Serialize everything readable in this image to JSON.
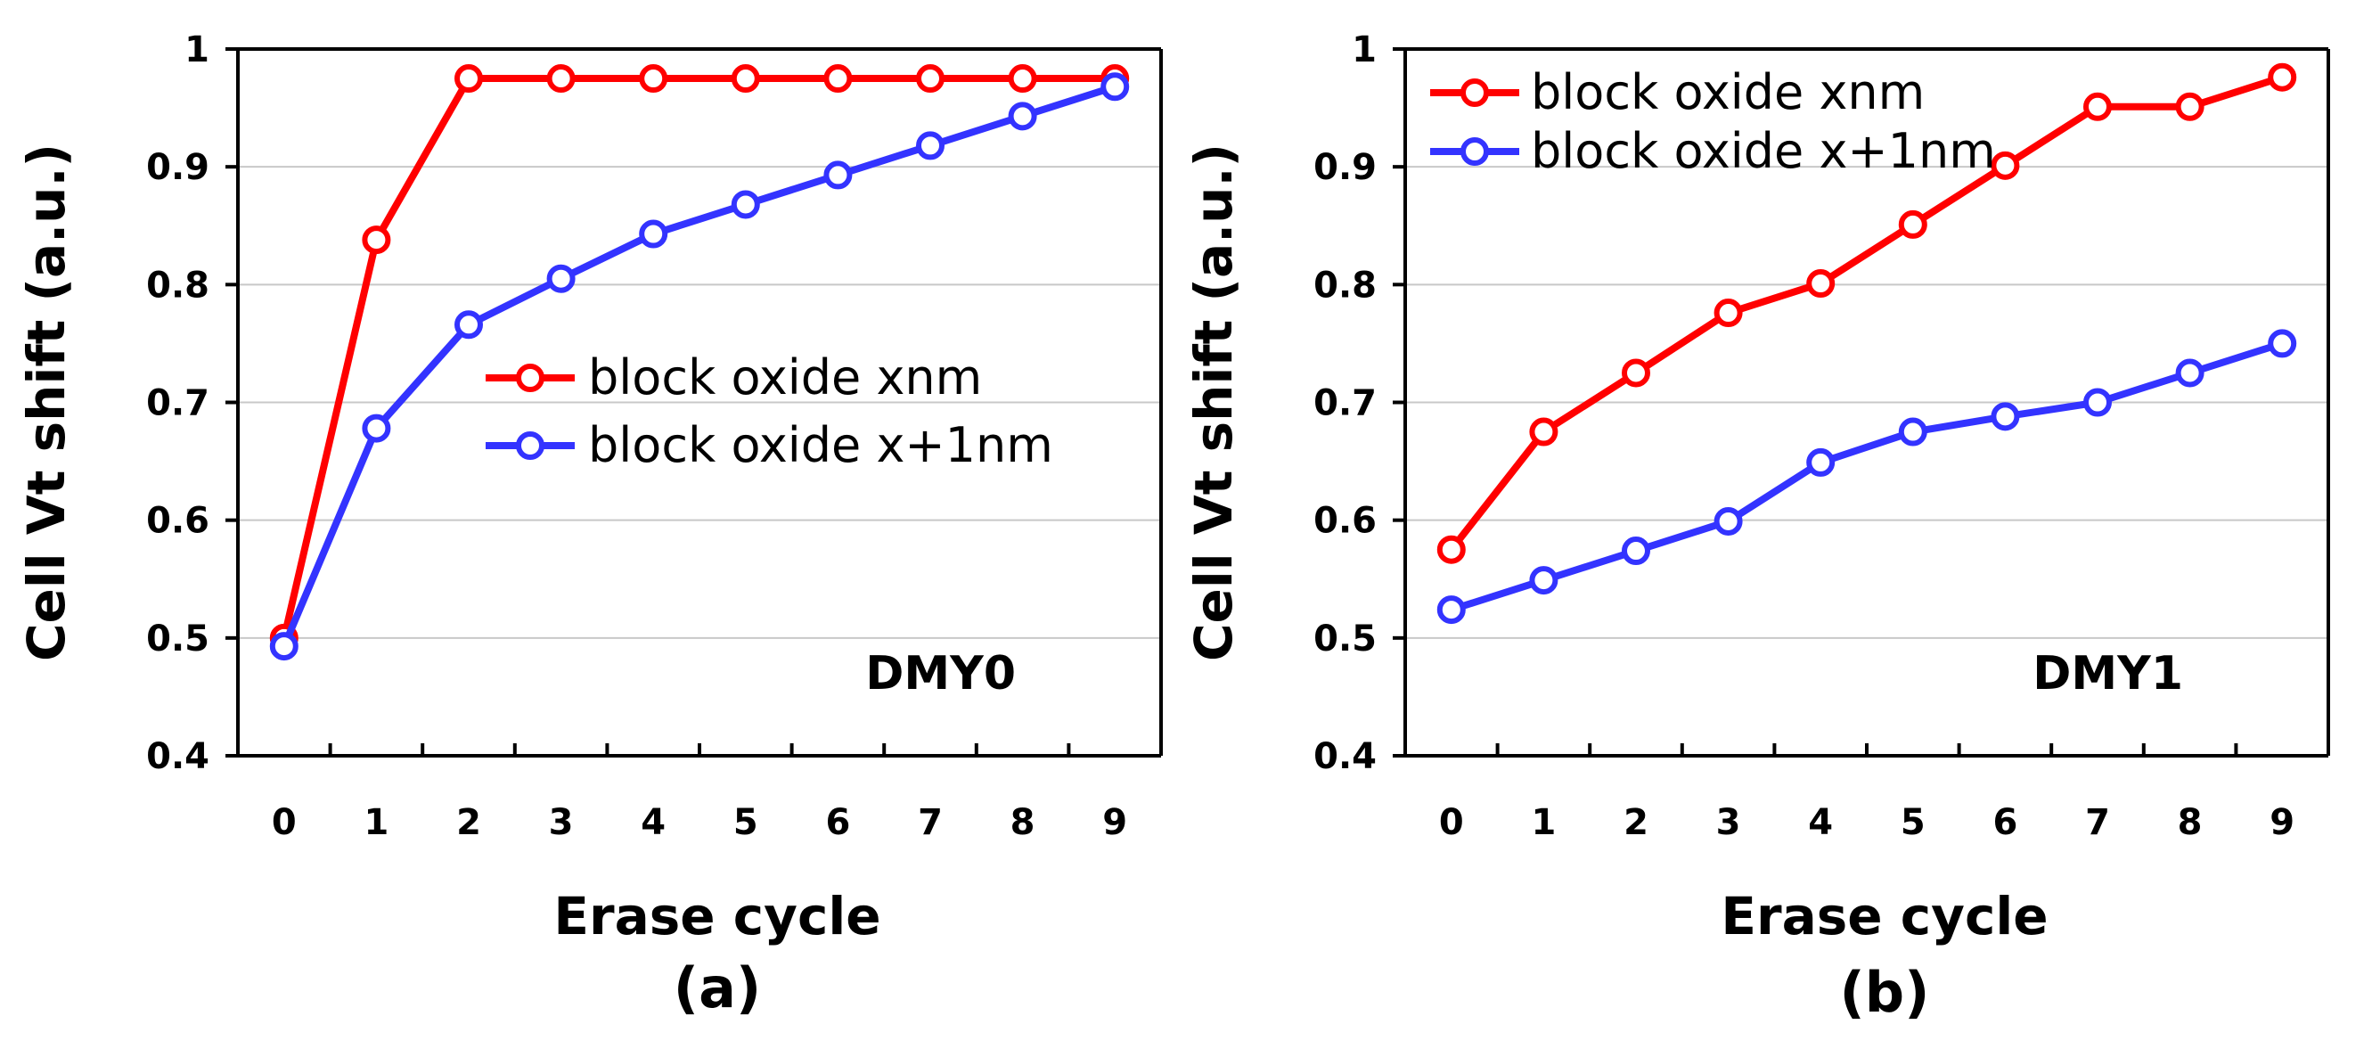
{
  "colors": {
    "series_red": "#ff0000",
    "series_blue": "#3333ff",
    "grid": "#c8c8c8"
  },
  "chart_data": [
    {
      "type": "line",
      "panel_label": "(a)",
      "annotation": "DMY0",
      "xlabel": "Erase cycle",
      "ylabel": "Cell Vt shift (a.u.)",
      "ylim": [
        0.4,
        1.0
      ],
      "yticks": [
        "0.4",
        "0.5",
        "0.6",
        "0.7",
        "0.8",
        "0.9",
        "1"
      ],
      "x": [
        0,
        1,
        2,
        3,
        4,
        5,
        6,
        7,
        8,
        9
      ],
      "xticks": [
        "0",
        "1",
        "2",
        "3",
        "4",
        "5",
        "6",
        "7",
        "8",
        "9"
      ],
      "legend_position": "center-right",
      "series": [
        {
          "name": "block oxide xnm",
          "color": "#ff0000",
          "values": [
            0.5,
            0.838,
            0.975,
            0.975,
            0.975,
            0.975,
            0.975,
            0.975,
            0.975,
            0.975
          ]
        },
        {
          "name": "block oxide x+1nm",
          "color": "#3333ff",
          "values": [
            0.493,
            0.678,
            0.766,
            0.805,
            0.843,
            0.868,
            0.893,
            0.918,
            0.943,
            0.968
          ]
        }
      ]
    },
    {
      "type": "line",
      "panel_label": "(b)",
      "annotation": "DMY1",
      "xlabel": "Erase cycle",
      "ylabel": "Cell Vt shift (a.u.)",
      "ylim": [
        0.4,
        1.0
      ],
      "yticks": [
        "0.4",
        "0.5",
        "0.6",
        "0.7",
        "0.8",
        "0.9",
        "1"
      ],
      "x": [
        0,
        1,
        2,
        3,
        4,
        5,
        6,
        7,
        8,
        9
      ],
      "xticks": [
        "0",
        "1",
        "2",
        "3",
        "4",
        "5",
        "6",
        "7",
        "8",
        "9"
      ],
      "legend_position": "top-left",
      "series": [
        {
          "name": "block oxide xnm",
          "color": "#ff0000",
          "values": [
            0.575,
            0.675,
            0.725,
            0.776,
            0.801,
            0.851,
            0.901,
            0.951,
            0.951,
            0.976
          ]
        },
        {
          "name": "block oxide x+1nm",
          "color": "#3333ff",
          "values": [
            0.524,
            0.549,
            0.574,
            0.599,
            0.649,
            0.675,
            0.688,
            0.7,
            0.725,
            0.75
          ]
        }
      ]
    }
  ]
}
